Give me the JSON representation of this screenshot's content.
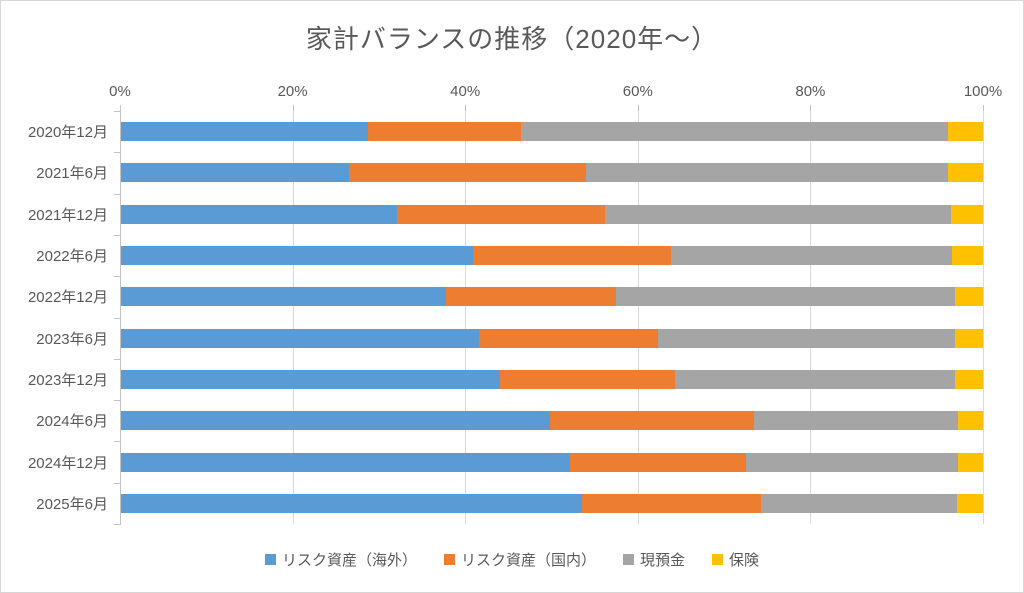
{
  "title": "家計バランスの推移（2020年～）",
  "colors": {
    "series_overseas": "#5B9BD5",
    "series_domestic": "#ED7D31",
    "series_cash": "#A5A5A5",
    "series_insurance": "#FFC000",
    "gridline": "#D9D9D9",
    "axis_text": "#595959",
    "chart_border": "#D6D6D6"
  },
  "chart_data": {
    "type": "bar",
    "orientation": "horizontal",
    "stacked": true,
    "percent_stacked": true,
    "title": "家計バランスの推移（2020年～）",
    "categories": [
      "2020年12月",
      "2021年6月",
      "2021年12月",
      "2022年6月",
      "2022年12月",
      "2023年6月",
      "2023年12月",
      "2024年6月",
      "2024年12月",
      "2025年6月"
    ],
    "series": [
      {
        "name": "リスク資産（海外）",
        "color": "#5B9BD5",
        "values": [
          28.6,
          26.4,
          32.0,
          40.8,
          37.7,
          41.5,
          44.0,
          49.8,
          52.1,
          53.5
        ]
      },
      {
        "name": "リスク資産（国内）",
        "color": "#ED7D31",
        "values": [
          17.8,
          27.5,
          24.2,
          23.0,
          19.7,
          20.8,
          20.3,
          23.6,
          20.4,
          20.7
        ]
      },
      {
        "name": "現預金",
        "color": "#A5A5A5",
        "values": [
          49.5,
          42.0,
          40.1,
          32.6,
          39.3,
          34.5,
          32.5,
          23.7,
          24.6,
          22.8
        ]
      },
      {
        "name": "保険",
        "color": "#FFC000",
        "values": [
          4.1,
          4.1,
          3.7,
          3.6,
          3.3,
          3.2,
          3.2,
          2.9,
          2.9,
          3.0
        ]
      }
    ],
    "x_axis": {
      "position": "top",
      "min": 0,
      "max": 100,
      "tick_labels": [
        "0%",
        "20%",
        "40%",
        "60%",
        "80%",
        "100%"
      ]
    },
    "legend": {
      "position": "bottom",
      "entries": [
        "リスク資産（海外）",
        "リスク資産（国内）",
        "現預金",
        "保険"
      ]
    },
    "grid": true
  }
}
